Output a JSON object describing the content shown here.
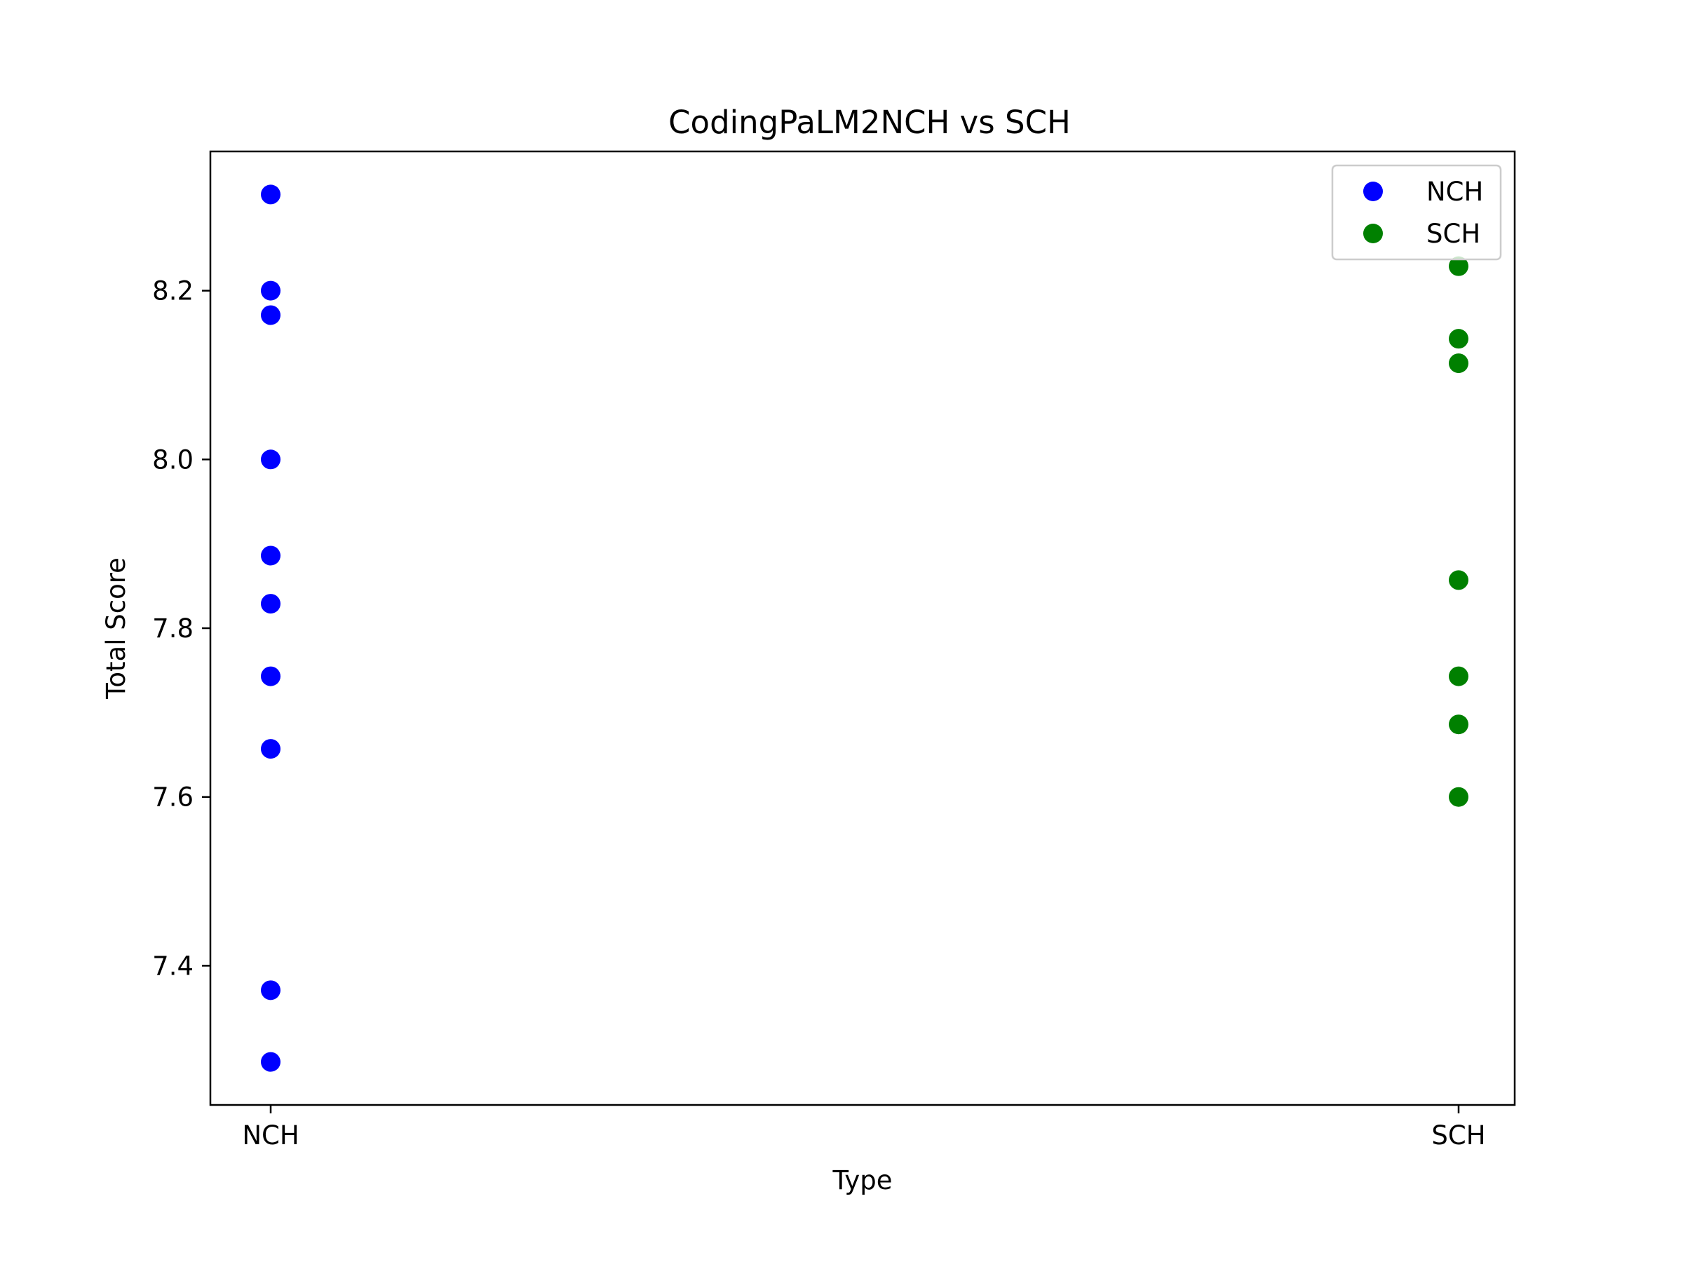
{
  "chart_data": {
    "type": "scatter",
    "title": "CodingPaLM2NCH vs SCH",
    "xlabel": "Type",
    "ylabel": "Total Score",
    "categories": [
      "NCH",
      "SCH"
    ],
    "ylim": [
      7.235,
      8.365
    ],
    "yticks": [
      "7.4",
      "7.6",
      "7.8",
      "8.0",
      "8.2"
    ],
    "grid": false,
    "legend_position": "top-right",
    "series": [
      {
        "name": "NCH",
        "color": "#0000ff",
        "x": [
          "NCH",
          "NCH",
          "NCH",
          "NCH",
          "NCH",
          "NCH",
          "NCH",
          "NCH",
          "NCH",
          "NCH"
        ],
        "y": [
          8.314,
          8.2,
          8.171,
          8.0,
          7.886,
          7.829,
          7.743,
          7.657,
          7.371,
          7.286
        ]
      },
      {
        "name": "SCH",
        "color": "#008000",
        "x": [
          "SCH",
          "SCH",
          "SCH",
          "SCH",
          "SCH",
          "SCH",
          "SCH"
        ],
        "y": [
          8.229,
          8.143,
          8.114,
          7.857,
          7.743,
          7.686,
          7.6
        ]
      }
    ]
  }
}
